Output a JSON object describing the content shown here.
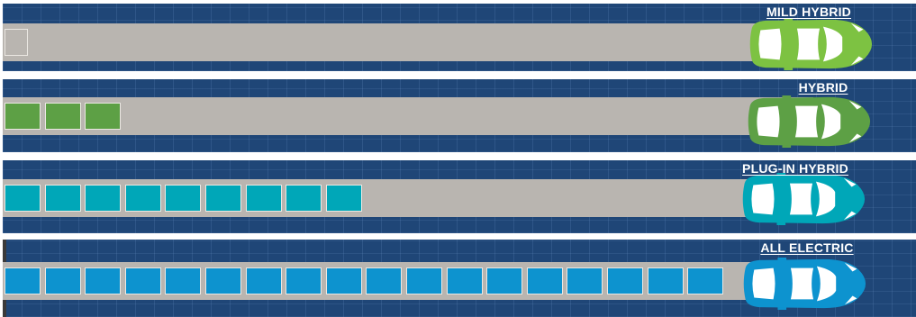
{
  "lanes": [
    {
      "label": "MILD HYBRID",
      "color": "#7dc242",
      "battery_cells": 1,
      "battery_style": "outline"
    },
    {
      "label": "HYBRID",
      "color": "#5da045",
      "battery_cells": 3,
      "battery_style": "filled"
    },
    {
      "label": "PLUG-IN HYBRID",
      "color": "#00a7b8",
      "battery_cells": 9,
      "battery_style": "filled"
    },
    {
      "label": "ALL ELECTRIC",
      "color": "#0d93cf",
      "battery_cells": 18,
      "battery_style": "filled"
    }
  ],
  "icons": {
    "vehicle": "car-icon",
    "battery": "battery-cell-icon"
  }
}
